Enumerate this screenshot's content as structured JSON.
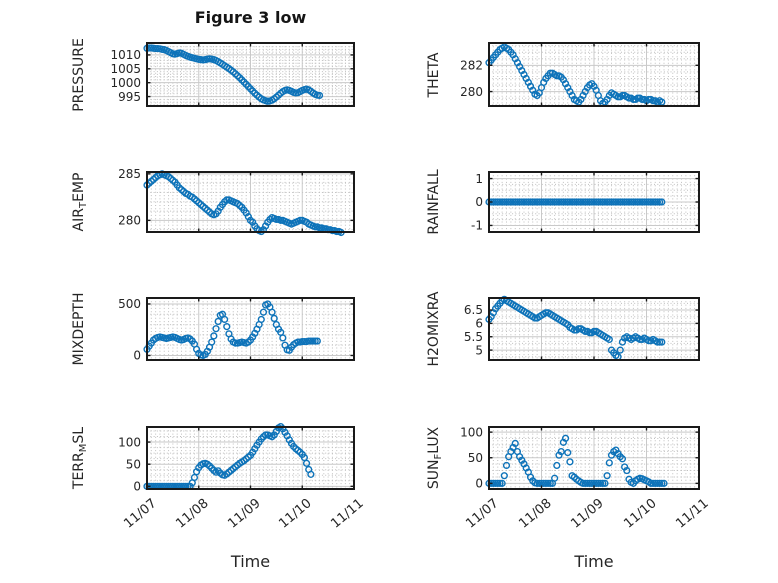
{
  "title": "Figure 3 low",
  "accent_color": "#0e73b9",
  "frame_color": "#1a1a1a",
  "grid_major_color": "#c9c9c9",
  "grid_minor_color": "#bfbfbf",
  "text_color": "#262626",
  "chart_data": {
    "type": "scatter",
    "marker": "open-circle",
    "xlabel": "Time",
    "x_ticks": [
      "11/07",
      "11/08",
      "11/09",
      "11/10",
      "11/11"
    ],
    "x_tick_positions_days": [
      0,
      1,
      2,
      3,
      4
    ],
    "xlim_days": [
      0,
      4
    ],
    "x_start_label": "11/07",
    "x_interval_hours": 1,
    "grid": "major solid + minor dotted",
    "subplots": [
      {
        "name": "PRESSURE",
        "ylabel_segments": [
          {
            "t": "PRESSURE",
            "sub": false
          }
        ],
        "yticks": [
          1010,
          1005,
          1000,
          995
        ],
        "ylim": [
          991.6,
          1014.3
        ],
        "y_minor_step": 1,
        "values": [
          1012.4,
          1012.5,
          1012.5,
          1012.4,
          1012.3,
          1012.3,
          1012.2,
          1012.0,
          1011.9,
          1011.6,
          1011.2,
          1010.8,
          1010.4,
          1010.3,
          1010.5,
          1010.7,
          1010.6,
          1010.2,
          1009.8,
          1009.5,
          1009.2,
          1009.0,
          1008.8,
          1008.6,
          1008.4,
          1008.3,
          1008.2,
          1008.3,
          1008.5,
          1008.6,
          1008.5,
          1008.3,
          1008.0,
          1007.6,
          1007.1,
          1006.6,
          1006.1,
          1005.6,
          1005.1,
          1004.5,
          1003.9,
          1003.2,
          1002.5,
          1001.8,
          1001.0,
          1000.2,
          999.4,
          998.6,
          997.8,
          997.0,
          996.2,
          995.5,
          994.8,
          994.2,
          993.8,
          993.5,
          993.3,
          993.4,
          993.7,
          994.2,
          994.8,
          995.5,
          996.2,
          996.8,
          997.2,
          997.4,
          997.2,
          996.9,
          996.5,
          996.3,
          996.4,
          996.8,
          997.2,
          997.5,
          997.7,
          997.4,
          996.9,
          996.3,
          995.8,
          995.5,
          995.4
        ]
      },
      {
        "name": "THETA",
        "ylabel_segments": [
          {
            "t": "THETA",
            "sub": false
          }
        ],
        "yticks": [
          282,
          280
        ],
        "ylim": [
          278.9,
          283.7
        ],
        "y_minor_step": 0.5,
        "values": [
          282.2,
          282.4,
          282.6,
          282.8,
          283.0,
          283.2,
          283.3,
          283.4,
          283.3,
          283.2,
          283.0,
          282.8,
          282.5,
          282.2,
          281.9,
          281.6,
          281.3,
          281.0,
          280.7,
          280.4,
          280.1,
          279.8,
          279.7,
          279.9,
          280.3,
          280.7,
          281.0,
          281.2,
          281.4,
          281.4,
          281.3,
          281.2,
          281.2,
          281.1,
          280.9,
          280.6,
          280.3,
          280.0,
          279.7,
          279.4,
          279.3,
          279.2,
          279.4,
          279.7,
          280.0,
          280.3,
          280.5,
          280.6,
          280.4,
          280.1,
          279.7,
          279.3,
          279.1,
          279.2,
          279.4,
          279.7,
          279.9,
          279.8,
          279.7,
          279.6,
          279.6,
          279.7,
          279.7,
          279.6,
          279.5,
          279.5,
          279.4,
          279.4,
          279.5,
          279.5,
          279.4,
          279.4,
          279.3,
          279.4,
          279.4,
          279.3,
          279.3,
          279.2,
          279.3,
          279.2
        ]
      },
      {
        "name": "AIR_TEMP",
        "ylabel_segments": [
          {
            "t": "AIR",
            "sub": false
          },
          {
            "t": "T",
            "sub": true
          },
          {
            "t": "EMP",
            "sub": false
          }
        ],
        "yticks": [
          285,
          280
        ],
        "ylim": [
          278.75,
          285.2
        ],
        "y_minor_step": 1,
        "values": [
          283.8,
          284.0,
          284.2,
          284.4,
          284.6,
          284.8,
          284.9,
          285.0,
          284.9,
          284.8,
          284.7,
          284.5,
          284.3,
          284.1,
          283.8,
          283.5,
          283.3,
          283.1,
          282.9,
          282.8,
          282.6,
          282.5,
          282.3,
          282.1,
          281.9,
          281.7,
          281.5,
          281.3,
          281.1,
          280.9,
          280.7,
          280.6,
          280.7,
          281.0,
          281.4,
          281.7,
          282.0,
          282.2,
          282.2,
          282.1,
          282.0,
          281.9,
          281.8,
          281.6,
          281.4,
          281.1,
          280.8,
          280.4,
          280.0,
          279.8,
          279.4,
          279.1,
          278.9,
          278.8,
          279.0,
          279.4,
          279.8,
          280.1,
          280.3,
          280.2,
          280.1,
          280.1,
          280.0,
          280.0,
          279.9,
          279.8,
          279.7,
          279.6,
          279.7,
          279.8,
          279.9,
          280.0,
          280.0,
          279.9,
          279.8,
          279.6,
          279.5,
          279.4,
          279.3,
          279.3,
          279.2,
          279.2,
          279.1,
          279.1,
          279.0,
          279.0,
          278.9,
          278.9,
          278.8,
          278.8,
          278.7
        ]
      },
      {
        "name": "RAINFALL",
        "ylabel_segments": [
          {
            "t": "RAINFALL",
            "sub": false
          }
        ],
        "yticks": [
          1,
          0,
          -1
        ],
        "ylim": [
          -1.28,
          1.28
        ],
        "y_minor_step": 0.25,
        "values": [
          0,
          0,
          0,
          0,
          0,
          0,
          0,
          0,
          0,
          0,
          0,
          0,
          0,
          0,
          0,
          0,
          0,
          0,
          0,
          0,
          0,
          0,
          0,
          0,
          0,
          0,
          0,
          0,
          0,
          0,
          0,
          0,
          0,
          0,
          0,
          0,
          0,
          0,
          0,
          0,
          0,
          0,
          0,
          0,
          0,
          0,
          0,
          0,
          0,
          0,
          0,
          0,
          0,
          0,
          0,
          0,
          0,
          0,
          0,
          0,
          0,
          0,
          0,
          0,
          0,
          0,
          0,
          0,
          0,
          0,
          0,
          0,
          0,
          0,
          0,
          0,
          0,
          0,
          0,
          0
        ]
      },
      {
        "name": "MIXDEPTH",
        "ylabel_segments": [
          {
            "t": "MIXDEPTH",
            "sub": false
          }
        ],
        "yticks": [
          500,
          0
        ],
        "ylim": [
          -44,
          558
        ],
        "y_minor_step": 100,
        "values": [
          60,
          90,
          120,
          150,
          165,
          175,
          180,
          175,
          170,
          165,
          170,
          175,
          180,
          175,
          165,
          155,
          150,
          155,
          165,
          170,
          160,
          140,
          110,
          60,
          20,
          5,
          0,
          10,
          40,
          80,
          130,
          190,
          260,
          330,
          390,
          400,
          350,
          280,
          210,
          160,
          130,
          120,
          120,
          125,
          130,
          125,
          120,
          130,
          150,
          180,
          215,
          255,
          300,
          350,
          420,
          490,
          500,
          470,
          420,
          360,
          300,
          255,
          225,
          170,
          100,
          55,
          50,
          80,
          105,
          120,
          130,
          130,
          135,
          135,
          135,
          140,
          140,
          140,
          140,
          140
        ]
      },
      {
        "name": "H2OMIXRA",
        "ylabel_segments": [
          {
            "t": "H2OMIXRA",
            "sub": false
          }
        ],
        "yticks": [
          6.5,
          6,
          5.5,
          5
        ],
        "ylim": [
          4.63,
          6.95
        ],
        "y_minor_step": 0.25,
        "values": [
          6.15,
          6.25,
          6.4,
          6.55,
          6.65,
          6.75,
          6.85,
          6.9,
          6.85,
          6.8,
          6.75,
          6.7,
          6.65,
          6.6,
          6.55,
          6.5,
          6.45,
          6.4,
          6.35,
          6.3,
          6.25,
          6.2,
          6.2,
          6.25,
          6.3,
          6.35,
          6.4,
          6.4,
          6.35,
          6.3,
          6.25,
          6.2,
          6.15,
          6.1,
          6.05,
          6.0,
          5.95,
          5.85,
          5.8,
          5.75,
          5.75,
          5.8,
          5.8,
          5.75,
          5.7,
          5.7,
          5.65,
          5.65,
          5.7,
          5.7,
          5.65,
          5.6,
          5.55,
          5.5,
          5.45,
          5.4,
          5.0,
          4.9,
          4.8,
          4.75,
          5.0,
          5.3,
          5.45,
          5.5,
          5.45,
          5.4,
          5.45,
          5.5,
          5.45,
          5.4,
          5.4,
          5.45,
          5.4,
          5.35,
          5.35,
          5.4,
          5.35,
          5.3,
          5.3,
          5.3
        ]
      },
      {
        "name": "TERR_MSL",
        "ylabel_segments": [
          {
            "t": "TERR",
            "sub": false
          },
          {
            "t": "M",
            "sub": true
          },
          {
            "t": "SL",
            "sub": false
          }
        ],
        "yticks": [
          100,
          50,
          0
        ],
        "ylim": [
          -6,
          134
        ],
        "y_minor_step": 12.5,
        "values": [
          0,
          0,
          0,
          0,
          0,
          0,
          0,
          0,
          0,
          0,
          0,
          0,
          0,
          0,
          0,
          0,
          0,
          0,
          0,
          0,
          0,
          8,
          20,
          33,
          42,
          48,
          51,
          52,
          50,
          46,
          41,
          36,
          32,
          35,
          30,
          26,
          25,
          28,
          32,
          36,
          40,
          44,
          48,
          52,
          55,
          58,
          62,
          66,
          70,
          77,
          85,
          93,
          100,
          107,
          112,
          116,
          116,
          114,
          112,
          116,
          124,
          132,
          135,
          130,
          122,
          114,
          105,
          97,
          90,
          85,
          81,
          77,
          72,
          65,
          52,
          38,
          27
        ]
      },
      {
        "name": "SUN_FLUX",
        "ylabel_segments": [
          {
            "t": "SUN",
            "sub": false
          },
          {
            "t": "F",
            "sub": true
          },
          {
            "t": "LUX",
            "sub": false
          }
        ],
        "yticks": [
          100,
          50,
          0
        ],
        "ylim": [
          -11,
          110
        ],
        "y_minor_step": 12.5,
        "values": [
          0,
          0,
          0,
          0,
          0,
          0,
          0,
          15,
          35,
          52,
          62,
          70,
          78,
          62,
          52,
          45,
          38,
          30,
          22,
          12,
          5,
          1,
          0,
          0,
          0,
          0,
          0,
          0,
          0,
          0,
          10,
          35,
          55,
          62,
          80,
          88,
          60,
          42,
          15,
          12,
          8,
          5,
          2,
          0,
          0,
          0,
          0,
          0,
          0,
          0,
          0,
          0,
          0,
          0,
          15,
          40,
          55,
          62,
          65,
          58,
          52,
          48,
          32,
          25,
          8,
          2,
          0,
          5,
          8,
          10,
          9,
          7,
          5,
          3,
          0,
          0,
          0,
          0,
          0,
          0,
          0
        ]
      }
    ]
  }
}
